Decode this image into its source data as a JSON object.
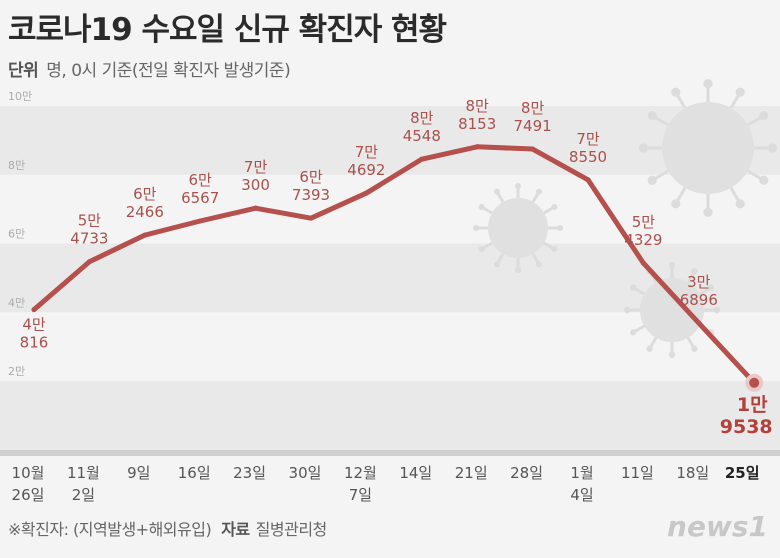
{
  "title": "코로나19 수요일 신규 확진자 현황",
  "subtitle": {
    "unit_label": "단위",
    "unit_text": "명, 0시 기준(전일 확진자 발생기준)"
  },
  "footer": {
    "note": "※확진자: (지역발생+해외유입)",
    "source_label": "자료",
    "source": "질병관리청"
  },
  "logo": "news1",
  "colors": {
    "line": "#b5504c",
    "label": "#a9514d"
  },
  "chart_data": {
    "type": "line",
    "title": "코로나19 수요일 신규 확진자 현황",
    "ylabel": "명",
    "ylim": [
      0,
      100000
    ],
    "yticks": [
      {
        "v": 20000,
        "t": "2만"
      },
      {
        "v": 40000,
        "t": "4만"
      },
      {
        "v": 60000,
        "t": "6만"
      },
      {
        "v": 80000,
        "t": "8만"
      },
      {
        "v": 100000,
        "t": "10만"
      }
    ],
    "categories": [
      [
        "10월",
        "26일"
      ],
      [
        "11월",
        "2일"
      ],
      [
        "9일"
      ],
      [
        "16일"
      ],
      [
        "23일"
      ],
      [
        "30일"
      ],
      [
        "12월",
        "7일"
      ],
      [
        "14일"
      ],
      [
        "21일"
      ],
      [
        "28일"
      ],
      [
        "1월",
        "4일"
      ],
      [
        "11일"
      ],
      [
        "18일"
      ],
      [
        "25일"
      ]
    ],
    "values": [
      40816,
      54733,
      62466,
      66567,
      70300,
      67393,
      74692,
      84548,
      88153,
      87491,
      78550,
      54329,
      36896,
      19538
    ],
    "labels": [
      [
        "4만",
        "816"
      ],
      [
        "5만",
        "4733"
      ],
      [
        "6만",
        "2466"
      ],
      [
        "6만",
        "6567"
      ],
      [
        "7만",
        "300"
      ],
      [
        "6만",
        "7393"
      ],
      [
        "7만",
        "4692"
      ],
      [
        "8만",
        "4548"
      ],
      [
        "8만",
        "8153"
      ],
      [
        "8만",
        "7491"
      ],
      [
        "7만",
        "8550"
      ],
      [
        "5만",
        "4329"
      ],
      [
        "3만",
        "6896"
      ],
      [
        "1만",
        "9538"
      ]
    ]
  }
}
